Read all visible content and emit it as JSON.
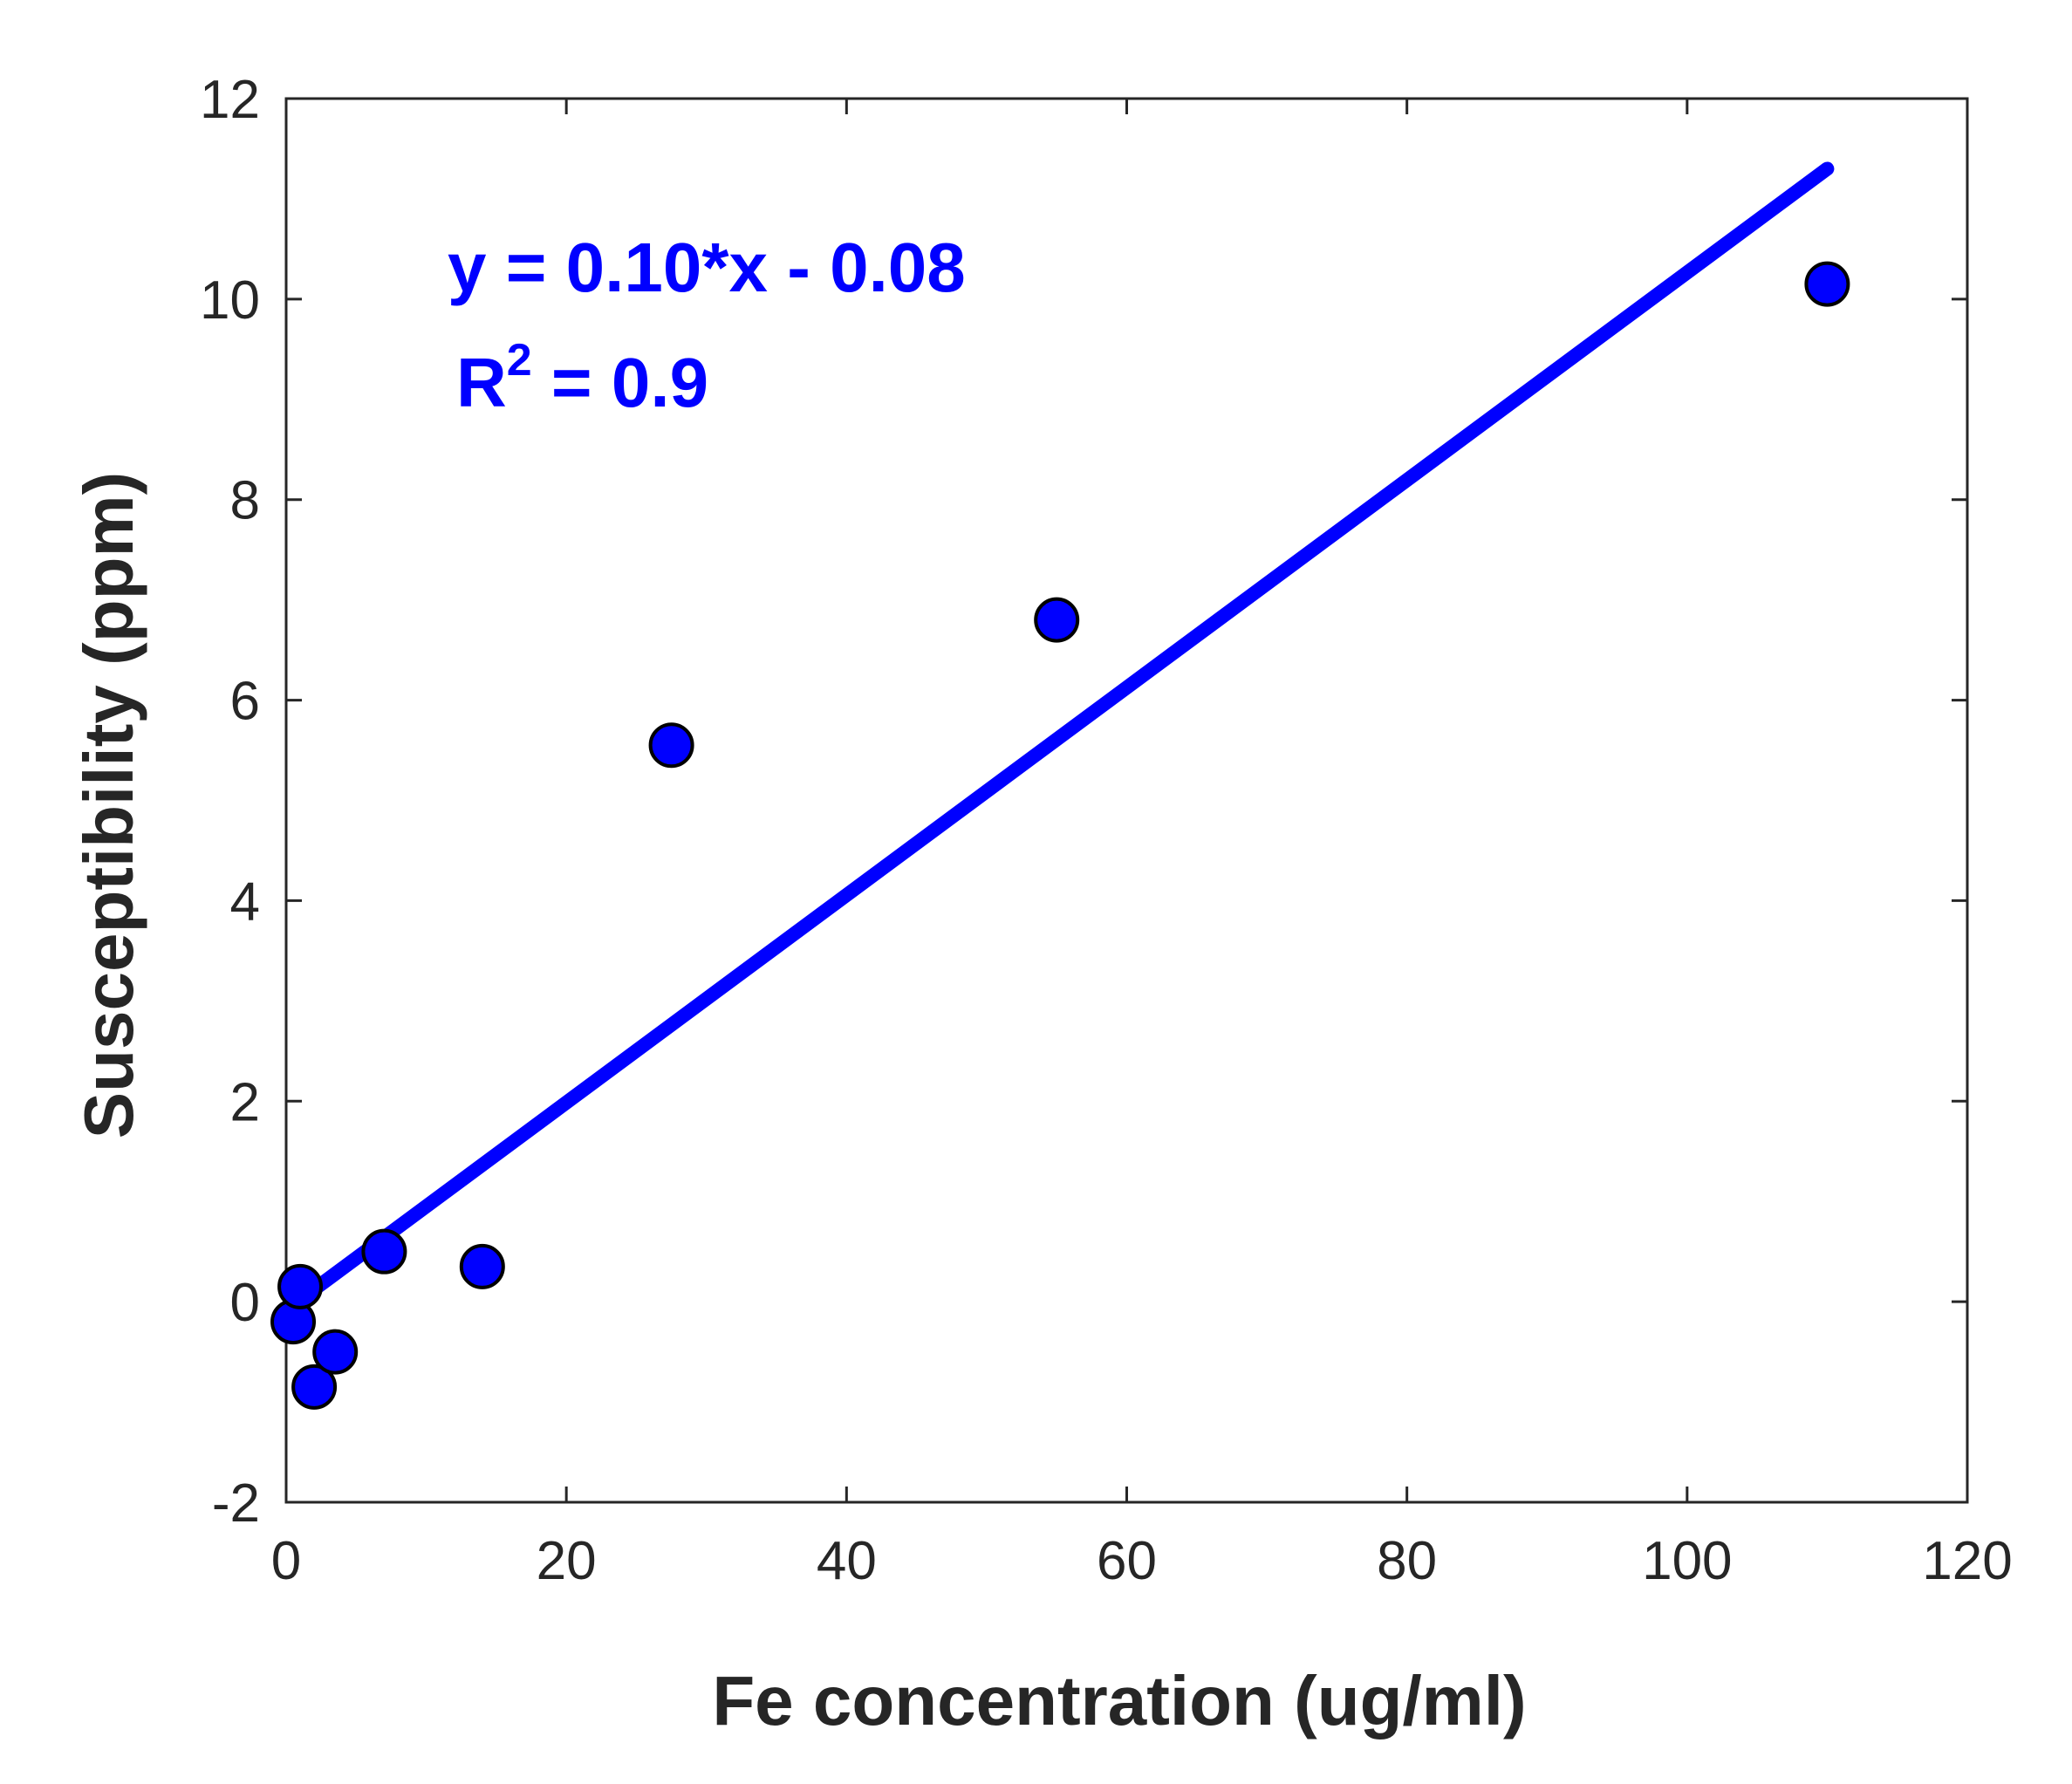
{
  "chart_data": {
    "type": "scatter",
    "xlabel": "Fe concentration (ug/ml)",
    "ylabel": "Susceptibility (ppm)",
    "xlim": [
      0,
      120
    ],
    "ylim": [
      -2,
      12
    ],
    "xticks": [
      0,
      20,
      40,
      60,
      80,
      100,
      120
    ],
    "yticks": [
      -2,
      0,
      2,
      4,
      6,
      8,
      10,
      12
    ],
    "grid": false,
    "colors": {
      "series": "#0000FF",
      "marker_edge": "#000000",
      "axis": "#262626"
    },
    "series": [
      {
        "type": "scatter",
        "x": [
          0.5,
          1.0,
          2.0,
          3.5,
          7.0,
          14.0,
          27.5,
          55.0,
          110.0
        ],
        "y": [
          -0.2,
          0.15,
          -0.85,
          -0.5,
          0.5,
          0.35,
          5.55,
          6.8,
          10.15
        ]
      },
      {
        "type": "line",
        "x": [
          1.0,
          110.0
        ],
        "y": [
          0.02,
          11.3
        ]
      }
    ],
    "annotations": {
      "equation": "y = 0.10*x - 0.08",
      "r2_prefix": "R",
      "r2_sup": "2",
      "r2_value": " = 0.9"
    }
  }
}
